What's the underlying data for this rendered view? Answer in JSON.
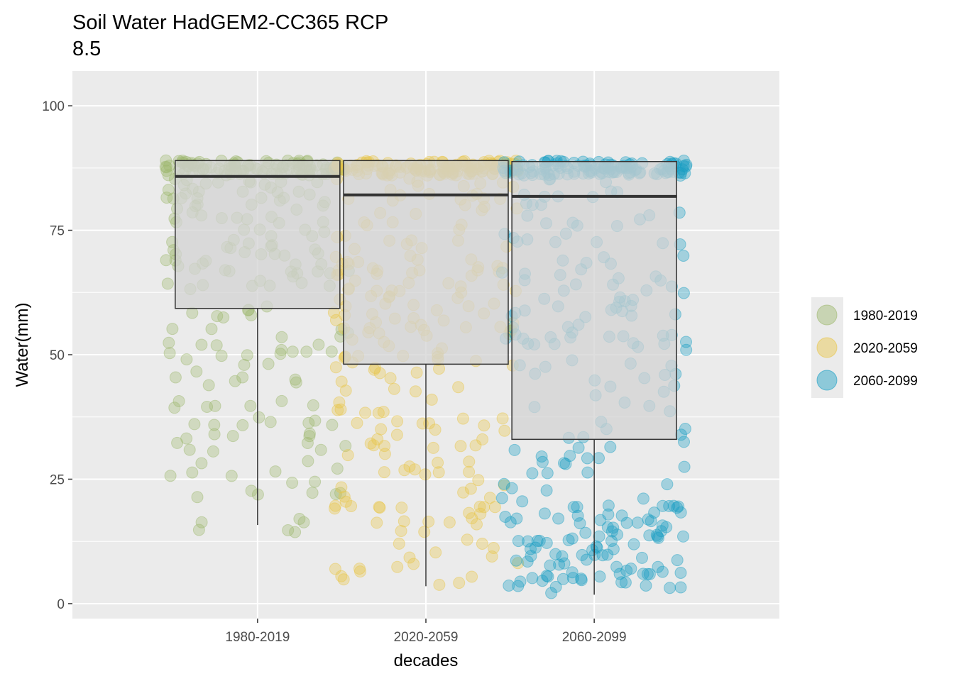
{
  "chart_data": {
    "type": "boxplot",
    "title_lines": [
      "Soil Water HadGEM2-CC365 RCP",
      "8.5"
    ],
    "xlabel": "decades",
    "ylabel": "Water(mm)",
    "ylim": [
      -3,
      107
    ],
    "y_ticks": [
      0,
      25,
      50,
      75,
      100
    ],
    "categories": [
      "1980-2019",
      "2020-2059",
      "2060-2099"
    ],
    "colors": [
      "#9eb86e",
      "#e8c547",
      "#1a9fc4"
    ],
    "grid": true,
    "legend": {
      "position": "right",
      "entries": [
        "1980-2019",
        "2020-2059",
        "2060-2099"
      ]
    },
    "boxes": [
      {
        "category": "1980-2019",
        "whisker_low": 15.8,
        "q1": 59.3,
        "median": 85.8,
        "q3": 89.0,
        "whisker_high": 89.0
      },
      {
        "category": "2020-2059",
        "whisker_low": 3.5,
        "q1": 48.1,
        "median": 82.1,
        "q3": 89.0,
        "whisker_high": 89.0
      },
      {
        "category": "2060-2099",
        "whisker_low": 1.8,
        "q1": 33.0,
        "median": 81.8,
        "q3": 88.8,
        "whisker_high": 88.8
      }
    ],
    "points_note": "jittered raw observations (alpha ~0.4) shown behind each box"
  }
}
